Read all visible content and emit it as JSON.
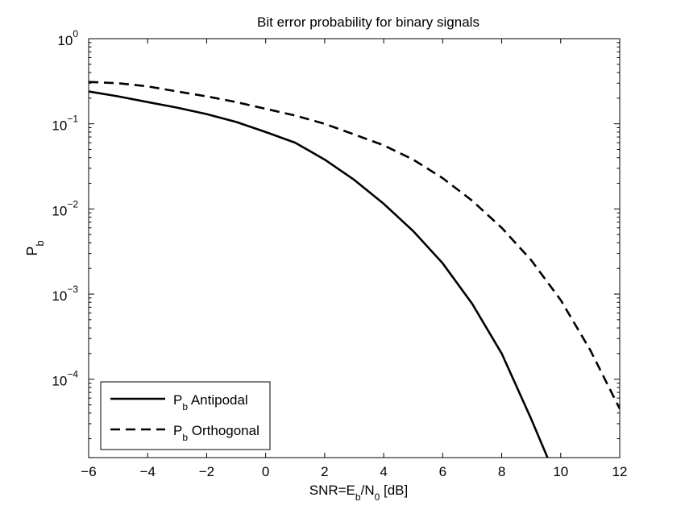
{
  "chart_data": {
    "type": "line",
    "title": "Bit error probability for binary signals",
    "xlabel": {
      "main": "SNR=E",
      "sub1": "b",
      "mid": "/N",
      "sub2": "0",
      "tail": " [dB]"
    },
    "ylabel": {
      "main": "P",
      "sub": "b"
    },
    "xlim": [
      -6,
      12
    ],
    "ylim": [
      1.2e-05,
      1
    ],
    "yscale": "log",
    "grid": false,
    "xticks": [
      -6,
      -4,
      -2,
      0,
      2,
      4,
      6,
      8,
      10,
      12
    ],
    "xtick_labels": [
      "−6",
      "−4",
      "−2",
      "0",
      "2",
      "4",
      "6",
      "8",
      "10",
      "12"
    ],
    "yticks": [
      {
        "value": 1,
        "base": "10",
        "exp": "0"
      },
      {
        "value": 0.1,
        "base": "10",
        "exp": "−1"
      },
      {
        "value": 0.01,
        "base": "10",
        "exp": "−2"
      },
      {
        "value": 0.001,
        "base": "10",
        "exp": "−3"
      },
      {
        "value": 0.0001,
        "base": "10",
        "exp": "−4"
      }
    ],
    "legend_position": "bottom-left",
    "series": [
      {
        "name_main": "P",
        "name_sub": "b",
        "name_tail": " Antipodal",
        "style": "solid",
        "color": "#000000",
        "x": [
          -6,
          -5,
          -4,
          -3,
          -2,
          -1,
          0,
          1,
          2,
          3,
          4,
          5,
          6,
          7,
          8,
          9,
          9.6
        ],
        "y": [
          0.24,
          0.21,
          0.18,
          0.155,
          0.13,
          0.105,
          0.08,
          0.06,
          0.038,
          0.022,
          0.0115,
          0.0055,
          0.0023,
          0.00077,
          0.0002,
          3.4e-05,
          1.1e-05
        ]
      },
      {
        "name_main": "P",
        "name_sub": "b",
        "name_tail": " Orthogonal",
        "style": "dashed",
        "color": "#000000",
        "x": [
          -6,
          -5,
          -4,
          -3,
          -2,
          -1,
          0,
          1,
          2,
          3,
          4,
          5,
          6,
          7,
          8,
          9,
          10,
          11,
          12
        ],
        "y": [
          0.31,
          0.3,
          0.275,
          0.24,
          0.21,
          0.18,
          0.15,
          0.125,
          0.1,
          0.075,
          0.056,
          0.038,
          0.023,
          0.0125,
          0.006,
          0.0025,
          0.00085,
          0.00022,
          4.5e-05
        ]
      }
    ]
  }
}
